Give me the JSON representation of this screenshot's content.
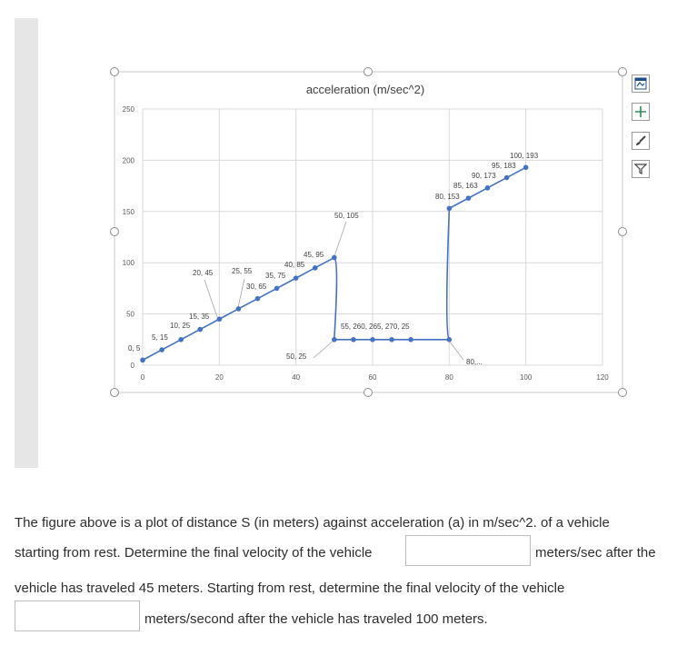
{
  "chart_data": {
    "type": "line",
    "title": "acceleration (m/sec^2)",
    "xlabel": "",
    "ylabel": "",
    "xlim": [
      0,
      120
    ],
    "ylim": [
      0,
      250
    ],
    "x_ticks": [
      "0",
      "20",
      "40",
      "60",
      "80",
      "100",
      "120"
    ],
    "y_ticks": [
      "0",
      "50",
      "100",
      "150",
      "200",
      "250"
    ],
    "grid": true,
    "smooth": true,
    "points": [
      {
        "x": 0,
        "y": 5,
        "label": "0, 5"
      },
      {
        "x": 5,
        "y": 15,
        "label": "5, 15"
      },
      {
        "x": 10,
        "y": 25,
        "label": "10, 25"
      },
      {
        "x": 15,
        "y": 35,
        "label": "15, 35"
      },
      {
        "x": 20,
        "y": 45,
        "label": "20, 45"
      },
      {
        "x": 25,
        "y": 55,
        "label": "25, 55"
      },
      {
        "x": 30,
        "y": 65,
        "label": "30, 65"
      },
      {
        "x": 35,
        "y": 75,
        "label": "35, 75"
      },
      {
        "x": 40,
        "y": 85,
        "label": "40, 85"
      },
      {
        "x": 45,
        "y": 95,
        "label": "45, 95"
      },
      {
        "x": 50,
        "y": 105,
        "label": "50, 105"
      },
      {
        "x": 50,
        "y": 25,
        "label": "50, 25"
      },
      {
        "x": 55,
        "y": 25,
        "label": "55, 25"
      },
      {
        "x": 60,
        "y": 25,
        "label": "60, 25"
      },
      {
        "x": 65,
        "y": 25,
        "label": "65, 25"
      },
      {
        "x": 70,
        "y": 25,
        "label": "70, 25"
      },
      {
        "x": 80,
        "y": 25,
        "label": "80,..."
      },
      {
        "x": 80,
        "y": 153,
        "label": "80, 153"
      },
      {
        "x": 85,
        "y": 163,
        "label": "85, 163"
      },
      {
        "x": 90,
        "y": 173,
        "label": "90, 173"
      },
      {
        "x": 95,
        "y": 183,
        "label": "95, 183"
      },
      {
        "x": 100,
        "y": 193,
        "label": "100, 193"
      }
    ],
    "line_color": "#4472c4"
  },
  "tools": {
    "icons": [
      "chart-layout-icon",
      "plus-icon",
      "brush-icon",
      "filter-icon"
    ]
  },
  "question": {
    "line1": "The figure above is a plot of distance S (in meters) against acceleration (a) in m/sec^2. of a vehicle",
    "line2": "starting from rest.  Determine the final velocity of the vehicle",
    "line2_suffix": "meters/sec after the",
    "line3": "vehicle has traveled 45 meters.   Starting from rest, determine the final velocity of the vehicle",
    "line4_suffix": "meters/second after the vehicle has traveled 100 meters.",
    "answer1_value": "",
    "answer2_value": ""
  }
}
